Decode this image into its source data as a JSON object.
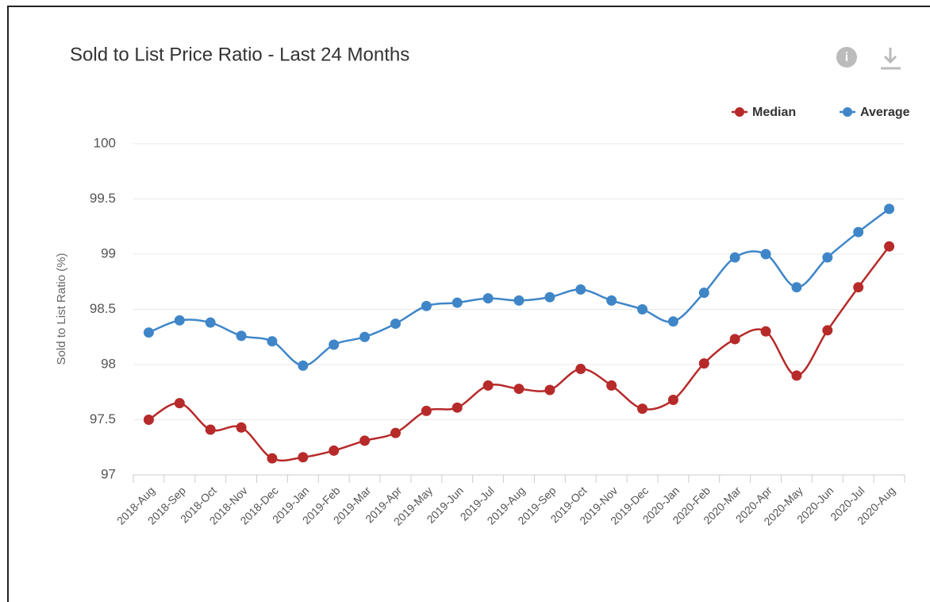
{
  "chart_data": {
    "type": "line",
    "title": "Sold to List Price Ratio - Last 24 Months",
    "ylabel": "Sold to List Ratio (%)",
    "categories": [
      "2018-Aug",
      "2018-Sep",
      "2018-Oct",
      "2018-Nov",
      "2018-Dec",
      "2019-Jan",
      "2019-Feb",
      "2019-Mar",
      "2019-Apr",
      "2019-May",
      "2019-Jun",
      "2019-Jul",
      "2019-Aug",
      "2019-Sep",
      "2019-Oct",
      "2019-Nov",
      "2019-Dec",
      "2020-Jan",
      "2020-Feb",
      "2020-Mar",
      "2020-Apr",
      "2020-May",
      "2020-Jun",
      "2020-Jul",
      "2020-Aug"
    ],
    "series": [
      {
        "name": "Median",
        "color": "#b72a2a",
        "values": [
          97.5,
          97.65,
          97.41,
          97.43,
          97.15,
          97.16,
          97.22,
          97.31,
          97.38,
          97.58,
          97.61,
          97.81,
          97.78,
          97.77,
          97.96,
          97.81,
          97.6,
          97.68,
          98.01,
          98.23,
          98.3,
          97.9,
          98.31,
          98.7,
          99.07
        ]
      },
      {
        "name": "Average",
        "color": "#3f86c8",
        "values": [
          98.29,
          98.4,
          98.38,
          98.26,
          98.21,
          97.99,
          98.18,
          98.25,
          98.37,
          98.53,
          98.56,
          98.6,
          98.58,
          98.61,
          98.68,
          98.58,
          98.5,
          98.39,
          98.65,
          98.97,
          99.0,
          98.7,
          98.97,
          99.2,
          99.41
        ]
      }
    ],
    "ylim": [
      97,
      100
    ],
    "yticks": [
      97,
      97.5,
      98,
      98.5,
      99,
      99.5,
      100
    ],
    "grid": true,
    "legend": "top-right"
  }
}
